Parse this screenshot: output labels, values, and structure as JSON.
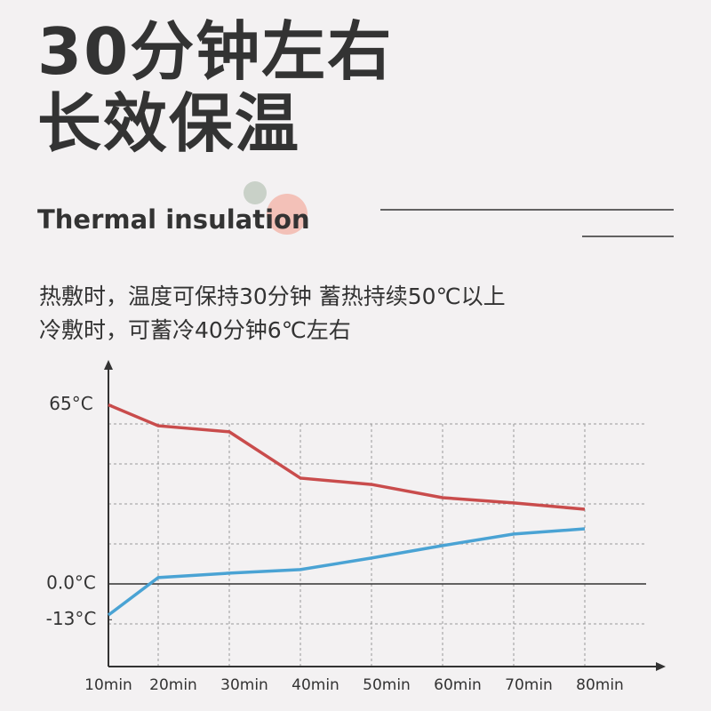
{
  "header": {
    "title": [
      "30分钟左右",
      "长效保温"
    ],
    "subtitle": "Thermal insulation",
    "description": [
      "热敷时，温度可保持30分钟 蓄热持续50℃以上",
      "冷敷时，可蓄冷40分钟6℃左右"
    ]
  },
  "chart_data": {
    "type": "line",
    "categories": [
      "10min",
      "20min",
      "30min",
      "40min",
      "50min",
      "60min",
      "70min",
      "80min"
    ],
    "series": [
      {
        "color": "#c94c4c",
        "values": [
          65,
          57.4,
          55.2,
          38.4,
          36.1,
          31.3,
          29.4,
          27.1
        ]
      },
      {
        "color": "#4aa3d4",
        "values": [
          -11.3,
          2.3,
          3.9,
          5.2,
          9.4,
          13.9,
          18.1,
          20
        ]
      }
    ],
    "ylim": [
      -30,
      80
    ],
    "yticks": [
      {
        "value": 65,
        "label": "65°C"
      },
      {
        "value": 0,
        "label": "0.0°C"
      },
      {
        "value": -13,
        "label": "-13°C"
      }
    ]
  }
}
